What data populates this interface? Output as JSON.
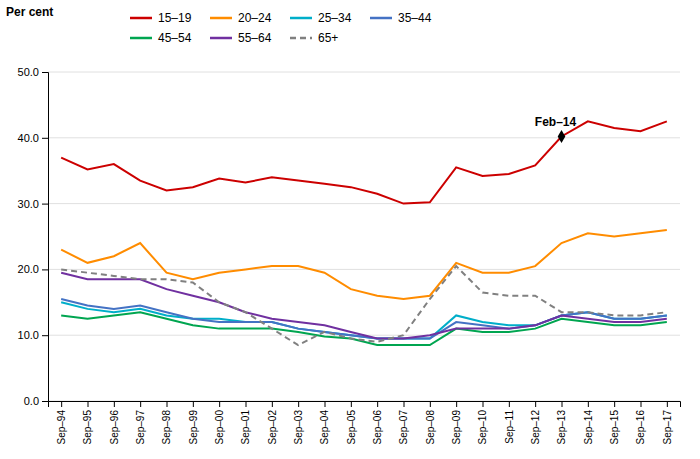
{
  "chart_data": {
    "type": "line",
    "y_label": "Per cent",
    "categories": [
      "Sep–94",
      "Sep–95",
      "Sep–96",
      "Sep–97",
      "Sep–98",
      "Sep–99",
      "Sep–00",
      "Sep–01",
      "Sep–02",
      "Sep–03",
      "Sep–04",
      "Sep–05",
      "Sep–06",
      "Sep–07",
      "Sep–08",
      "Sep–09",
      "Sep–10",
      "Sep–11",
      "Sep–12",
      "Sep–13",
      "Sep–14",
      "Sep–15",
      "Sep–16",
      "Sep–17"
    ],
    "series": [
      {
        "name": "15–19",
        "color": "#cc0000",
        "line_style": "solid",
        "values": [
          37.0,
          35.2,
          36.0,
          33.5,
          32.0,
          32.5,
          33.8,
          33.2,
          34.0,
          33.5,
          33.0,
          32.5,
          31.5,
          30.0,
          30.2,
          35.5,
          34.2,
          34.5,
          35.8,
          40.2,
          42.5,
          41.5,
          41.0,
          42.5
        ]
      },
      {
        "name": "20–24",
        "color": "#ff8c00",
        "line_style": "solid",
        "values": [
          23.0,
          21.0,
          22.0,
          24.0,
          19.5,
          18.5,
          19.5,
          20.0,
          20.5,
          20.5,
          19.5,
          17.0,
          16.0,
          15.5,
          16.0,
          21.0,
          19.5,
          19.5,
          20.5,
          24.0,
          25.5,
          25.0,
          25.5,
          26.0
        ]
      },
      {
        "name": "25–34",
        "color": "#00aec9",
        "line_style": "solid",
        "values": [
          15.0,
          14.0,
          13.5,
          14.0,
          13.0,
          12.5,
          12.5,
          12.0,
          12.0,
          11.0,
          10.5,
          10.0,
          9.5,
          9.5,
          9.5,
          13.0,
          12.0,
          11.5,
          11.5,
          13.0,
          13.5,
          12.5,
          12.5,
          13.0
        ]
      },
      {
        "name": "35–44",
        "color": "#4472c4",
        "line_style": "solid",
        "values": [
          15.5,
          14.5,
          14.0,
          14.5,
          13.5,
          12.5,
          12.0,
          12.0,
          12.0,
          11.0,
          10.5,
          10.0,
          9.5,
          9.5,
          9.5,
          12.0,
          11.5,
          11.0,
          11.5,
          13.0,
          13.5,
          12.5,
          12.5,
          13.0
        ]
      },
      {
        "name": "45–54",
        "color": "#00a550",
        "line_style": "solid",
        "values": [
          13.0,
          12.5,
          13.0,
          13.5,
          12.5,
          11.5,
          11.0,
          11.0,
          11.0,
          10.5,
          9.8,
          9.5,
          8.5,
          8.5,
          8.5,
          11.0,
          10.5,
          10.5,
          11.0,
          12.5,
          12.0,
          11.5,
          11.5,
          12.0
        ]
      },
      {
        "name": "55–64",
        "color": "#7030a0",
        "line_style": "solid",
        "values": [
          19.5,
          18.5,
          18.5,
          18.5,
          17.0,
          16.0,
          15.0,
          13.5,
          12.5,
          12.0,
          11.5,
          10.5,
          9.5,
          9.5,
          10.0,
          11.0,
          11.0,
          11.0,
          11.5,
          13.0,
          12.5,
          12.0,
          12.0,
          12.5
        ]
      },
      {
        "name": "65+",
        "color": "#808080",
        "line_style": "dashed",
        "values": [
          20.0,
          19.5,
          19.0,
          18.5,
          18.5,
          18.0,
          15.0,
          13.5,
          11.0,
          8.5,
          10.5,
          9.5,
          9.0,
          10.0,
          15.5,
          20.5,
          16.5,
          16.0,
          16.0,
          13.5,
          13.5,
          13.0,
          13.0,
          13.5
        ]
      }
    ],
    "annotations": [
      {
        "text": "Feb–14",
        "x": "Sep–13",
        "y": 40.2,
        "marker": "diamond"
      }
    ],
    "ylim": [
      0.0,
      50.0
    ],
    "yticks": [
      {
        "value": 0.0,
        "label": "0.0"
      },
      {
        "value": 10.0,
        "label": "10.0"
      },
      {
        "value": 20.0,
        "label": "20.0"
      },
      {
        "value": 30.0,
        "label": "30.0"
      },
      {
        "value": 40.0,
        "label": "40.0"
      },
      {
        "value": 50.0,
        "label": "50.0"
      }
    ],
    "grid": true,
    "legend": "top"
  }
}
